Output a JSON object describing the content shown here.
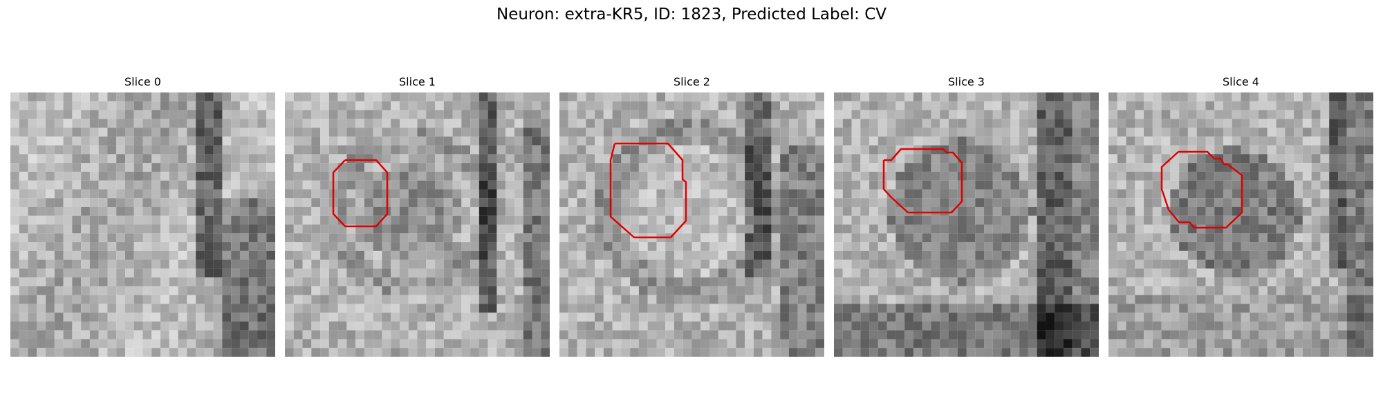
{
  "figure": {
    "title": "Neuron: extra-KR5, ID: 1823, Predicted Label: CV"
  },
  "image_grid": {
    "cols": 30,
    "rows": 30
  },
  "panels": [
    {
      "title": "Slice 0",
      "has_contour": false
    },
    {
      "title": "Slice 1",
      "has_contour": true,
      "contour_color": "#e00000"
    },
    {
      "title": "Slice 2",
      "has_contour": true,
      "contour_color": "#e00000"
    },
    {
      "title": "Slice 3",
      "has_contour": true,
      "contour_color": "#e00000"
    },
    {
      "title": "Slice 4",
      "has_contour": true,
      "contour_color": "#e00000"
    }
  ]
}
